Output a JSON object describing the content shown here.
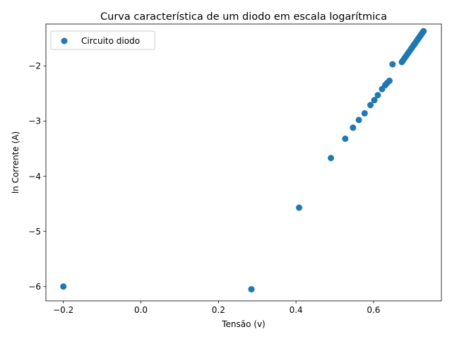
{
  "chart_data": {
    "type": "scatter",
    "title": "Curva característica de um diodo em escala logarítmica",
    "xlabel": "Tensão (v)",
    "ylabel": "ln Corrente (A)",
    "xlim": [
      -0.245,
      0.775
    ],
    "ylim": [
      -6.26,
      -1.24
    ],
    "xticks": [
      -0.2,
      0.0,
      0.2,
      0.4,
      0.6
    ],
    "xtick_labels": [
      "−0.2",
      "0.0",
      "0.2",
      "0.4",
      "0.6"
    ],
    "yticks": [
      -6,
      -5,
      -4,
      -3,
      -2
    ],
    "ytick_labels": [
      "−6",
      "−5",
      "−4",
      "−3",
      "−2"
    ],
    "grid": false,
    "legend": {
      "position": "top-left",
      "entries": [
        "Circuito diodo"
      ]
    },
    "series": [
      {
        "name": "Circuito diodo",
        "color": "#1f77b4",
        "x": [
          -0.2,
          0.285,
          0.408,
          0.49,
          0.527,
          0.547,
          0.562,
          0.577,
          0.592,
          0.602,
          0.611,
          0.622,
          0.63,
          0.635,
          0.641,
          0.649,
          0.673,
          0.676,
          0.68,
          0.684,
          0.688,
          0.692,
          0.696,
          0.699,
          0.703,
          0.706,
          0.709,
          0.712,
          0.715,
          0.718,
          0.721,
          0.724,
          0.727,
          0.729
        ],
        "y": [
          -6.0,
          -6.05,
          -4.57,
          -3.67,
          -3.32,
          -3.12,
          -2.98,
          -2.86,
          -2.71,
          -2.62,
          -2.53,
          -2.42,
          -2.35,
          -2.31,
          -2.27,
          -1.97,
          -1.93,
          -1.9,
          -1.86,
          -1.82,
          -1.78,
          -1.74,
          -1.7,
          -1.67,
          -1.63,
          -1.6,
          -1.57,
          -1.54,
          -1.51,
          -1.48,
          -1.45,
          -1.42,
          -1.39,
          -1.37
        ]
      }
    ]
  }
}
